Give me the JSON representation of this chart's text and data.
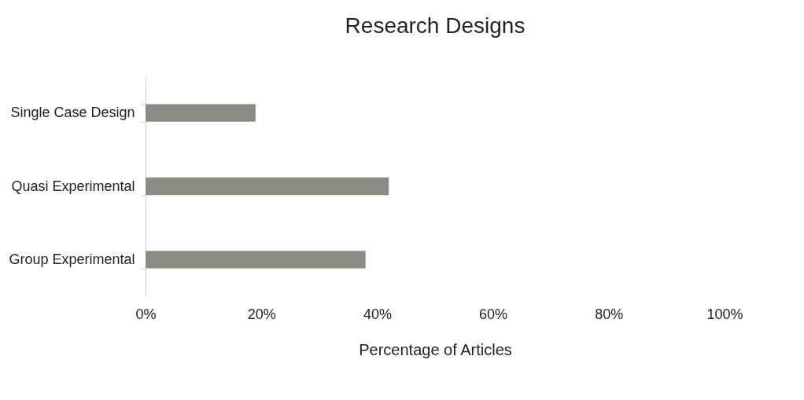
{
  "chart_data": {
    "type": "bar",
    "orientation": "horizontal",
    "title": "Research Designs",
    "xlabel": "Percentage of Articles",
    "categories": [
      "Single Case Design",
      "Quasi Experimental",
      "Group Experimental"
    ],
    "series": [
      {
        "color": "#8c8c84",
        "values": [
          19,
          42,
          38
        ]
      }
    ],
    "xlim": [
      0,
      100
    ],
    "xticks": [
      {
        "value": 0,
        "label": "0%"
      },
      {
        "value": 20,
        "label": "20%"
      },
      {
        "value": 40,
        "label": "40%"
      },
      {
        "value": 60,
        "label": "60%"
      },
      {
        "value": 80,
        "label": "80%"
      },
      {
        "value": 100,
        "label": "100%"
      }
    ],
    "grid": false
  }
}
